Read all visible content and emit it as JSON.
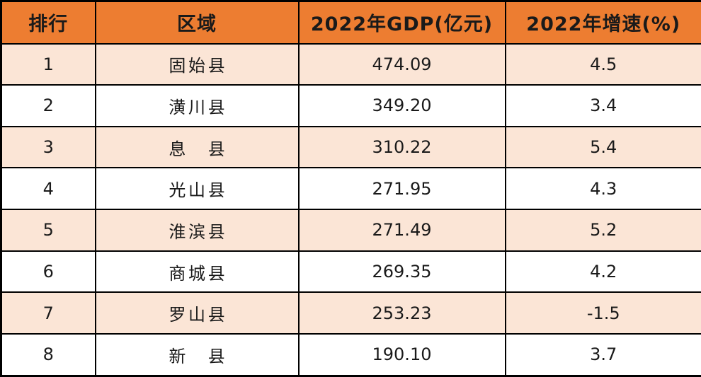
{
  "table": {
    "columns": [
      {
        "key": "rank",
        "label": "排行"
      },
      {
        "key": "region",
        "label": "区域"
      },
      {
        "key": "gdp",
        "label": "2022年GDP(亿元)"
      },
      {
        "key": "growth",
        "label": "2022年增速(%)"
      }
    ],
    "rows": [
      {
        "rank": "1",
        "region": "固始县",
        "gdp": "474.09",
        "growth": "4.5"
      },
      {
        "rank": "2",
        "region": "潢川县",
        "gdp": "349.20",
        "growth": "3.4"
      },
      {
        "rank": "3",
        "region": "息县",
        "gdp": "310.22",
        "growth": "5.4"
      },
      {
        "rank": "4",
        "region": "光山县",
        "gdp": "271.95",
        "growth": "4.3"
      },
      {
        "rank": "5",
        "region": "淮滨县",
        "gdp": "271.49",
        "growth": "5.2"
      },
      {
        "rank": "6",
        "region": "商城县",
        "gdp": "269.35",
        "growth": "4.2"
      },
      {
        "rank": "7",
        "region": "罗山县",
        "gdp": "253.23",
        "growth": "-1.5"
      },
      {
        "rank": "8",
        "region": "新县",
        "gdp": "190.10",
        "growth": "3.7"
      }
    ]
  },
  "colors": {
    "header_bg": "#ED7D31",
    "stripe_bg": "#FBE5D6",
    "row_bg": "#FFFFFF",
    "border_color": "#000000",
    "text_color": "#1A1A1A"
  },
  "chart_data": {
    "type": "table",
    "columns": [
      "排行",
      "区域",
      "2022年GDP(亿元)",
      "2022年增速(%)"
    ],
    "rows": [
      [
        1,
        "固始县",
        474.09,
        4.5
      ],
      [
        2,
        "潢川县",
        349.2,
        3.4
      ],
      [
        3,
        "息县",
        310.22,
        5.4
      ],
      [
        4,
        "光山县",
        271.95,
        4.3
      ],
      [
        5,
        "淮滨县",
        271.49,
        5.2
      ],
      [
        6,
        "商城县",
        269.35,
        4.2
      ],
      [
        7,
        "罗山县",
        253.23,
        -1.5
      ],
      [
        8,
        "新县",
        190.1,
        3.7
      ]
    ]
  }
}
